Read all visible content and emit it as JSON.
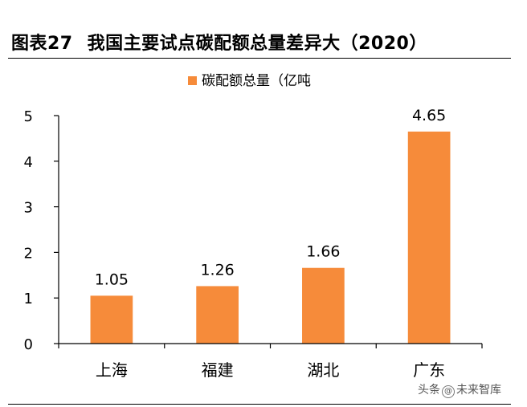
{
  "header": {
    "figure_label": "图表27",
    "title": "我国主要试点碳配额总量差异大（2020）"
  },
  "chart_data": {
    "type": "bar",
    "title": "我国主要试点碳配额总量差异大（2020）",
    "categories": [
      "上海",
      "福建",
      "湖北",
      "广东"
    ],
    "series": [
      {
        "name": "碳配额总量（亿吨",
        "values": [
          1.05,
          1.26,
          1.66,
          4.65
        ]
      }
    ],
    "value_labels": [
      "1.05",
      "1.26",
      "1.66",
      "4.65"
    ],
    "ylim": [
      0,
      5
    ],
    "yticks": [
      0,
      1,
      2,
      3,
      4,
      5
    ],
    "xlabel": "",
    "ylabel": "",
    "grid": false,
    "legend_position": "top-center",
    "bar_color": "#F68B3A"
  },
  "watermark": {
    "prefix": "头条",
    "at": "@",
    "name": "未来智库"
  }
}
